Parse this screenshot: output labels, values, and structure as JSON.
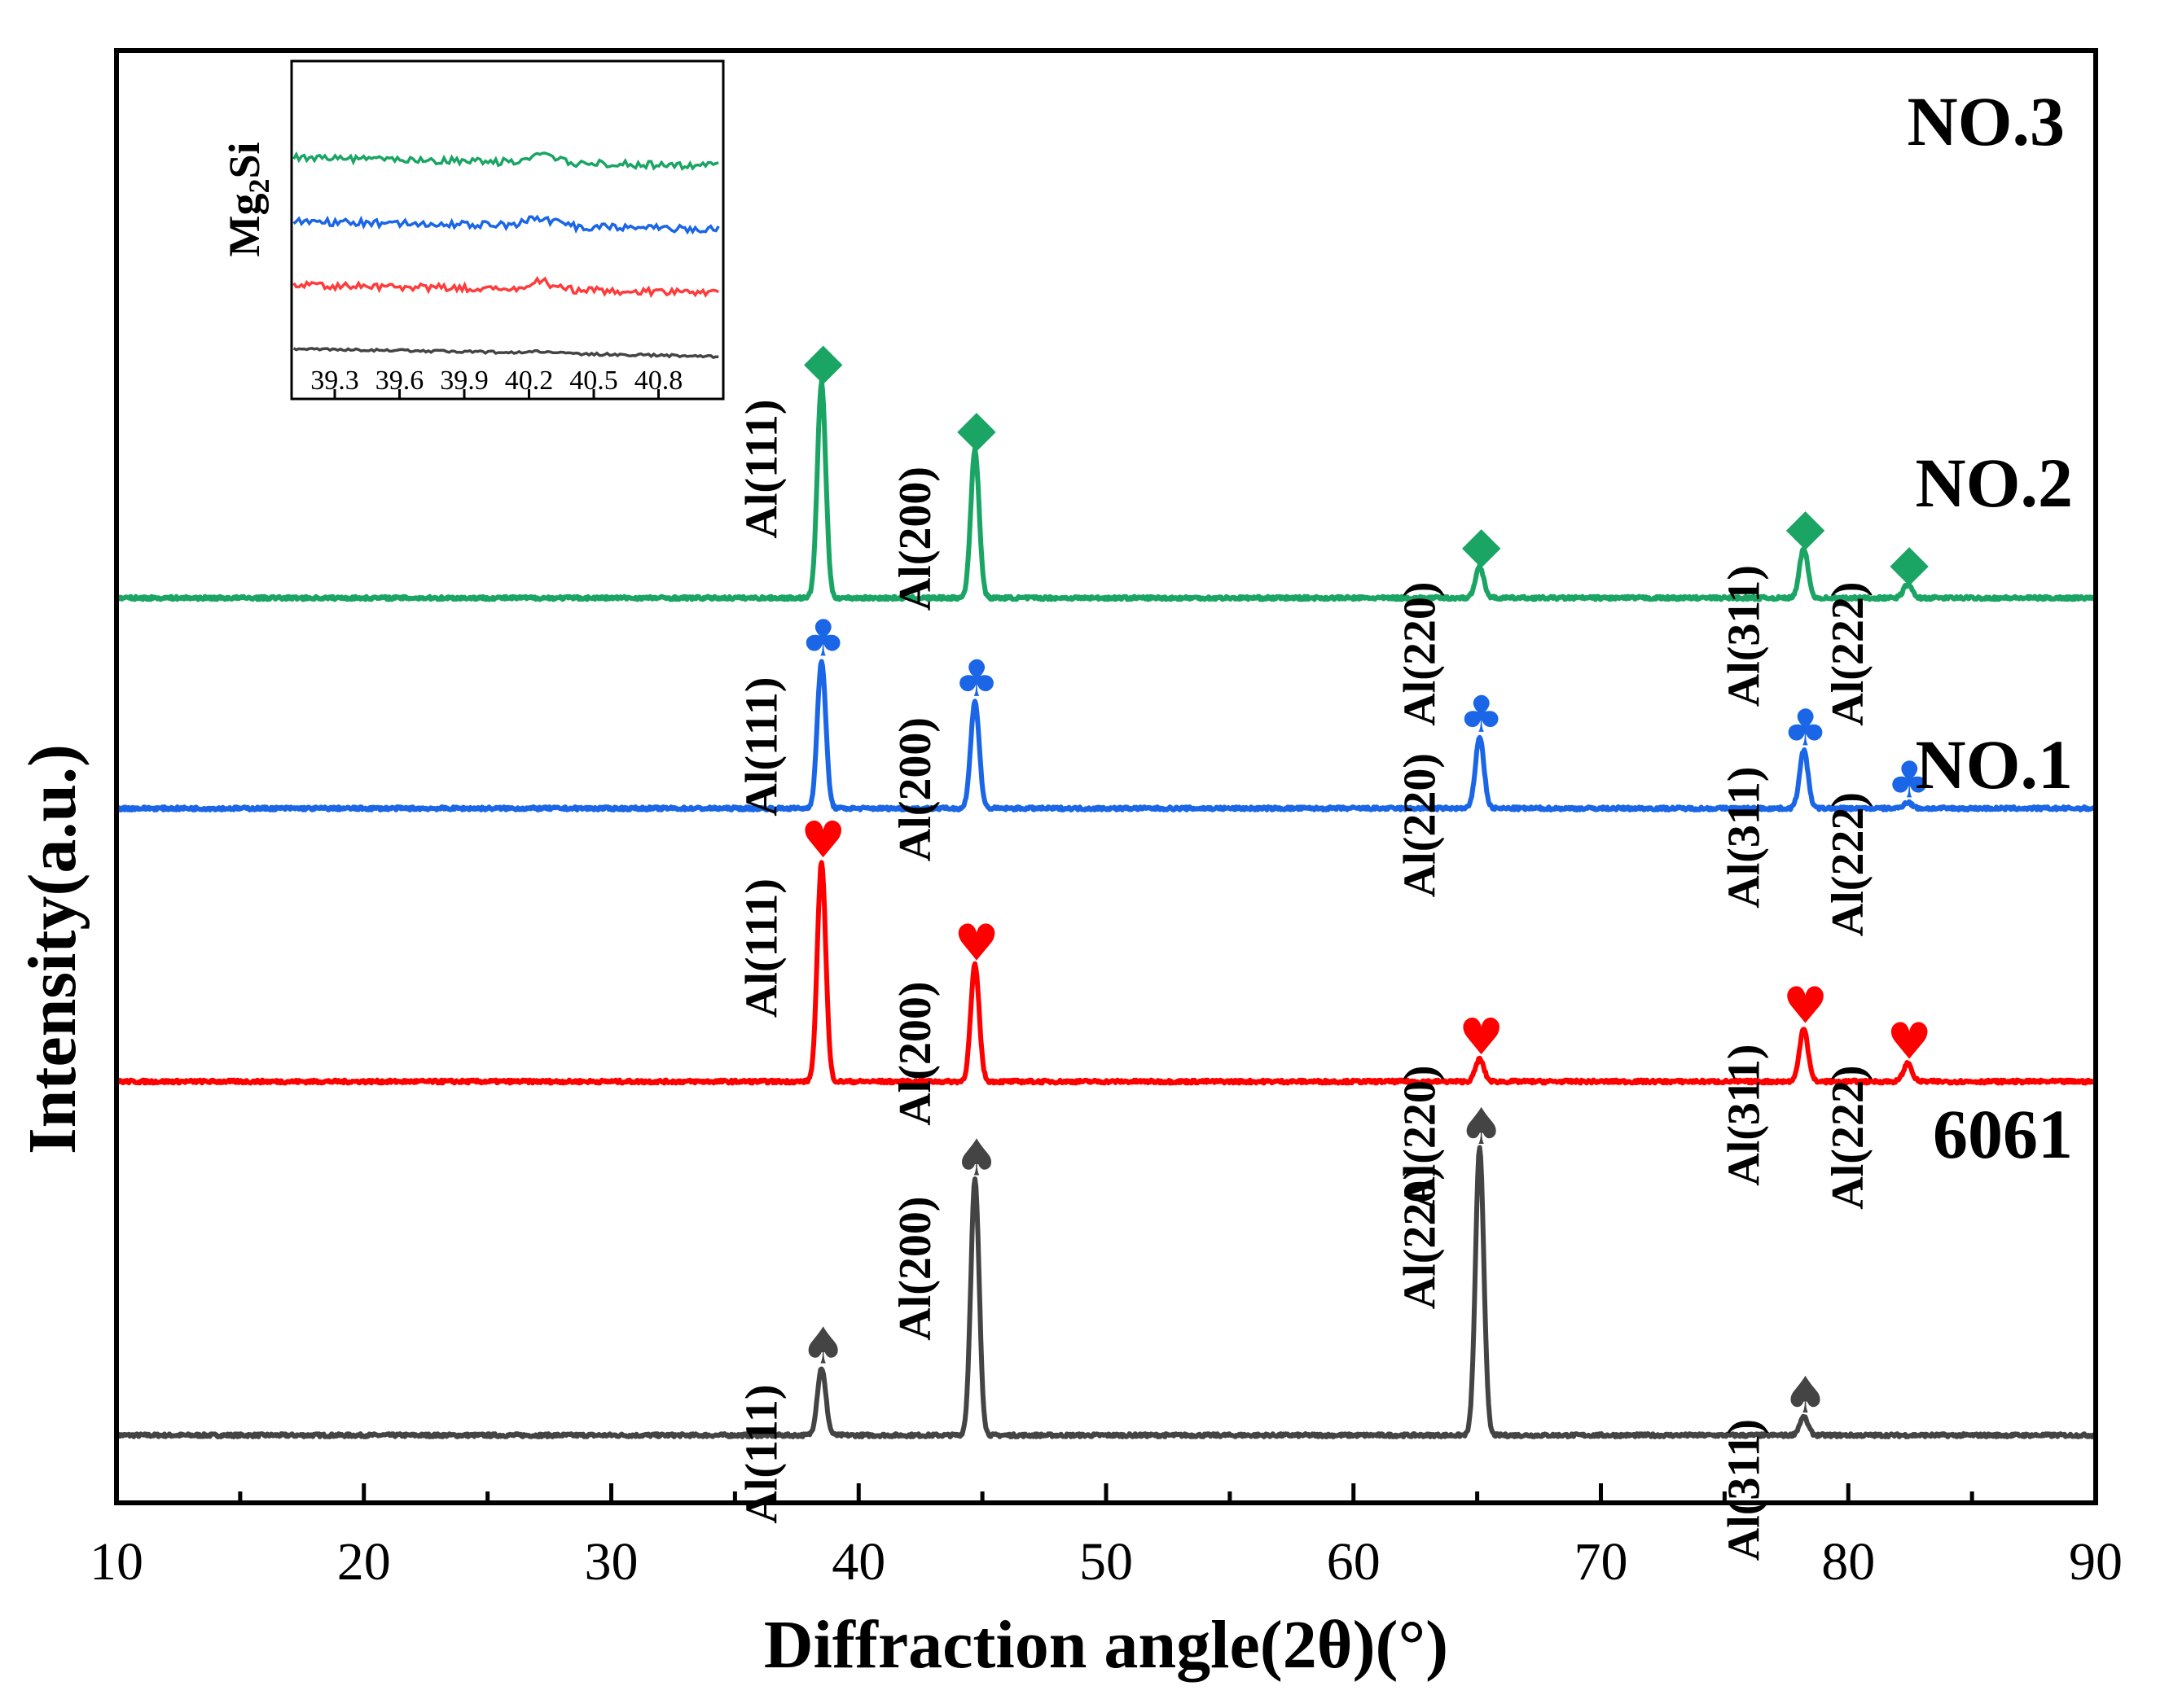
{
  "chart_data": {
    "type": "line",
    "xlabel": "Diffraction angle(2θ)(°)",
    "ylabel": "Intensity(a.u.)",
    "xlim": [
      10,
      90
    ],
    "x_ticks": [
      10,
      20,
      30,
      40,
      50,
      60,
      70,
      80,
      90
    ],
    "x_tick_labels": [
      "10",
      "20",
      "30",
      "40",
      "50",
      "60",
      "70",
      "80",
      "90"
    ],
    "y_axis": "stacked, arbitrary units",
    "series": [
      {
        "name": "6061",
        "color": "#444444",
        "marker_symbol": "♠",
        "marker_name": "spade",
        "baseline_au": 0.0,
        "peaks": [
          {
            "label": "Al(111)",
            "x": 38.5,
            "height_au": 0.75
          },
          {
            "label": "Al(200)",
            "x": 44.7,
            "height_au": 2.85
          },
          {
            "label": "Al(220)",
            "x": 65.1,
            "height_au": 3.2
          },
          {
            "label": "Al(311)",
            "x": 78.2,
            "height_au": 0.2
          }
        ]
      },
      {
        "name": "NO.1",
        "color": "#ff0000",
        "marker_symbol": "♥",
        "marker_name": "heart",
        "baseline_au": 3.95,
        "peaks": [
          {
            "label": "Al(111)",
            "x": 38.5,
            "height_au": 2.45
          },
          {
            "label": "Al(200)",
            "x": 44.7,
            "height_au": 1.3
          },
          {
            "label": "Al(220)",
            "x": 65.1,
            "height_au": 0.25
          },
          {
            "label": "Al(311)",
            "x": 78.2,
            "height_au": 0.6
          },
          {
            "label": "Al(222)",
            "x": 82.4,
            "height_au": 0.2
          }
        ]
      },
      {
        "name": "NO.2",
        "color": "#1a66e6",
        "marker_symbol": "♣",
        "marker_name": "club",
        "baseline_au": 7.0,
        "peaks": [
          {
            "label": "Al(111)",
            "x": 38.5,
            "height_au": 1.65
          },
          {
            "label": "Al(200)",
            "x": 44.7,
            "height_au": 1.2
          },
          {
            "label": "Al(220)",
            "x": 65.1,
            "height_au": 0.8
          },
          {
            "label": "Al(311)",
            "x": 78.2,
            "height_au": 0.65
          },
          {
            "label": "Al(222)",
            "x": 82.4,
            "height_au": 0.07
          }
        ]
      },
      {
        "name": "NO.3",
        "color": "#1aa564",
        "marker_symbol": "◆",
        "marker_name": "diamond",
        "baseline_au": 9.35,
        "peaks": [
          {
            "label": "Al(111)",
            "x": 38.5,
            "height_au": 2.4
          },
          {
            "label": "Al(200)",
            "x": 44.7,
            "height_au": 1.65
          },
          {
            "label": "Al(220)",
            "x": 65.1,
            "height_au": 0.35
          },
          {
            "label": "Al(311)",
            "x": 78.2,
            "height_au": 0.55
          },
          {
            "label": "Al(222)",
            "x": 82.4,
            "height_au": 0.15
          }
        ]
      }
    ],
    "inset": {
      "title": "Mg2Si",
      "title_main": "Mg",
      "title_sub": "2",
      "title_rest": "Si",
      "xlim": [
        39.1,
        41.1
      ],
      "x_ticks": [
        39.3,
        39.6,
        39.9,
        40.2,
        40.5,
        40.8
      ],
      "x_tick_labels": [
        "39.3",
        "39.6",
        "39.9",
        "40.2",
        "40.5",
        "40.8"
      ],
      "bump_x": 40.25,
      "series": [
        {
          "name": "NO.3",
          "color": "#1aa564",
          "level": 4
        },
        {
          "name": "NO.2",
          "color": "#1a66e6",
          "level": 3
        },
        {
          "name": "NO.1",
          "color": "#ff3b3b",
          "level": 2
        },
        {
          "name": "6061",
          "color": "#444444",
          "level": 1
        }
      ]
    }
  }
}
